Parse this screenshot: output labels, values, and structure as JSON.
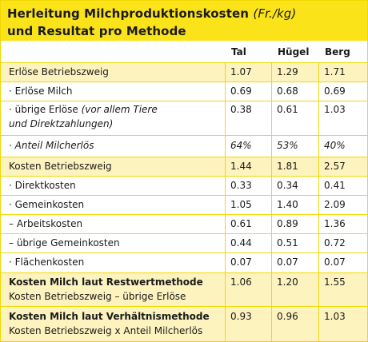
{
  "title": {
    "line1_main": "Herleitung Milchproduktionskosten",
    "line1_unit": "(Fr./kg)",
    "line2": "und Resultat pro Methode"
  },
  "columns": [
    "Tal",
    "Hügel",
    "Berg"
  ],
  "rows": [
    {
      "label": "Erlöse Betriebszweig",
      "values": [
        "1.07",
        "1.29",
        "1.71"
      ]
    },
    {
      "label": "· Erlöse Milch",
      "values": [
        "0.69",
        "0.68",
        "0.69"
      ]
    },
    {
      "label_main": "· übrige Erlöse",
      "label_paren": "(vor allem Tiere",
      "label_line2": "und Direktzahlungen)",
      "values": [
        "0.38",
        "0.61",
        "1.03"
      ]
    },
    {
      "label": "· Anteil Milcherlös",
      "values": [
        "64%",
        "53%",
        "40%"
      ]
    },
    {
      "label": "Kosten Betriebszweig",
      "values": [
        "1.44",
        "1.81",
        "2.57"
      ]
    },
    {
      "label": "· Direktkosten",
      "values": [
        "0.33",
        "0.34",
        "0.41"
      ]
    },
    {
      "label": "· Gemeinkosten",
      "values": [
        "1.05",
        "1.40",
        "2.09"
      ]
    },
    {
      "label": "– Arbeitskosten",
      "values": [
        "0.61",
        "0.89",
        "1.36"
      ]
    },
    {
      "label": "– übrige Gemeinkosten",
      "values": [
        "0.44",
        "0.51",
        "0.72"
      ]
    },
    {
      "label": "· Flächenkosten",
      "values": [
        "0.07",
        "0.07",
        "0.07"
      ]
    },
    {
      "label": "Kosten Milch laut Restwertmethode",
      "sublabel": "Kosten Betriebszweig – übrige Erlöse",
      "values": [
        "1.06",
        "1.20",
        "1.55"
      ]
    },
    {
      "label": "Kosten Milch laut Verhältnismethode",
      "sublabel": "Kosten Betriebszweig x Anteil Milcherlös",
      "values": [
        "0.93",
        "0.96",
        "1.03"
      ]
    }
  ],
  "colors": {
    "title_bg": "#fbe31a",
    "shade_bg": "#fdf3bf",
    "rule": "#f2d800"
  }
}
